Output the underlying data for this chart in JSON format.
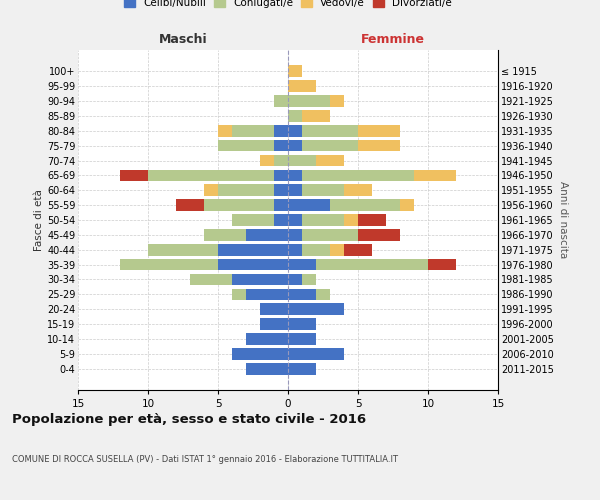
{
  "age_groups": [
    "0-4",
    "5-9",
    "10-14",
    "15-19",
    "20-24",
    "25-29",
    "30-34",
    "35-39",
    "40-44",
    "45-49",
    "50-54",
    "55-59",
    "60-64",
    "65-69",
    "70-74",
    "75-79",
    "80-84",
    "85-89",
    "90-94",
    "95-99",
    "100+"
  ],
  "birth_years": [
    "2011-2015",
    "2006-2010",
    "2001-2005",
    "1996-2000",
    "1991-1995",
    "1986-1990",
    "1981-1985",
    "1976-1980",
    "1971-1975",
    "1966-1970",
    "1961-1965",
    "1956-1960",
    "1951-1955",
    "1946-1950",
    "1941-1945",
    "1936-1940",
    "1931-1935",
    "1926-1930",
    "1921-1925",
    "1916-1920",
    "≤ 1915"
  ],
  "maschi": {
    "celibi": [
      3,
      4,
      3,
      2,
      2,
      3,
      4,
      5,
      5,
      3,
      1,
      1,
      1,
      1,
      0,
      1,
      1,
      0,
      0,
      0,
      0
    ],
    "coniugati": [
      0,
      0,
      0,
      0,
      0,
      1,
      3,
      7,
      5,
      3,
      3,
      5,
      4,
      9,
      1,
      4,
      3,
      0,
      1,
      0,
      0
    ],
    "vedovi": [
      0,
      0,
      0,
      0,
      0,
      0,
      0,
      0,
      0,
      0,
      0,
      0,
      1,
      0,
      1,
      0,
      1,
      0,
      0,
      0,
      0
    ],
    "divorziati": [
      0,
      0,
      0,
      0,
      0,
      0,
      0,
      0,
      0,
      0,
      0,
      2,
      0,
      2,
      0,
      0,
      0,
      0,
      0,
      0,
      0
    ]
  },
  "femmine": {
    "nubili": [
      2,
      4,
      2,
      2,
      4,
      2,
      1,
      2,
      1,
      1,
      1,
      3,
      1,
      1,
      0,
      1,
      1,
      0,
      0,
      0,
      0
    ],
    "coniugate": [
      0,
      0,
      0,
      0,
      0,
      1,
      1,
      8,
      2,
      4,
      3,
      5,
      3,
      8,
      2,
      4,
      4,
      1,
      3,
      0,
      0
    ],
    "vedove": [
      0,
      0,
      0,
      0,
      0,
      0,
      0,
      0,
      1,
      0,
      1,
      1,
      2,
      3,
      2,
      3,
      3,
      2,
      1,
      2,
      1
    ],
    "divorziate": [
      0,
      0,
      0,
      0,
      0,
      0,
      0,
      2,
      2,
      3,
      2,
      0,
      0,
      0,
      0,
      0,
      0,
      0,
      0,
      0,
      0
    ]
  },
  "colors": {
    "celibi_nubili": "#4472c4",
    "coniugati": "#b5c98e",
    "vedovi": "#f0c060",
    "divorziati": "#c0392b"
  },
  "title": "Popolazione per età, sesso e stato civile - 2016",
  "subtitle": "COMUNE DI ROCCA SUSELLA (PV) - Dati ISTAT 1° gennaio 2016 - Elaborazione TUTTITALIA.IT",
  "xlabel_left": "Maschi",
  "xlabel_right": "Femmine",
  "ylabel_left": "Fasce di età",
  "ylabel_right": "Anni di nascita",
  "xlim": 15,
  "background_color": "#f0f0f0",
  "plot_bg": "#ffffff"
}
